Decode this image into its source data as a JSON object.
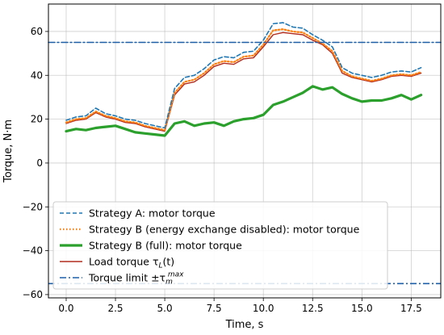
{
  "chart_data": {
    "type": "line",
    "title": "",
    "xlabel": "Time, s",
    "ylabel": "Torque, N·m",
    "xlim": [
      -0.9,
      19.0
    ],
    "ylim": [
      -61.5,
      72.5
    ],
    "xticks": [
      0,
      2.5,
      5,
      7.5,
      10,
      12.5,
      15,
      17.5
    ],
    "xtick_labels": [
      "0.0",
      "2.5",
      "5.0",
      "7.5",
      "10.0",
      "12.5",
      "15.0",
      "17.5"
    ],
    "yticks": [
      -60,
      -40,
      -20,
      0,
      20,
      40,
      60
    ],
    "ytick_labels": [
      "−60",
      "−40",
      "−20",
      "0",
      "20",
      "40",
      "60"
    ],
    "grid": true,
    "legend_position": "lower-left",
    "series": [
      {
        "name": "Strategy A: motor torque",
        "color": "#1f77b4",
        "style": "dashed",
        "x": [
          0,
          0.5,
          1,
          1.5,
          2,
          2.5,
          3,
          3.5,
          4,
          4.5,
          5,
          5.5,
          6,
          6.5,
          7,
          7.5,
          8,
          8.5,
          9,
          9.5,
          10,
          10.5,
          11,
          11.5,
          12,
          12.5,
          13,
          13.5,
          14,
          14.5,
          15,
          15.5,
          16,
          16.5,
          17,
          17.5,
          18
        ],
        "y": [
          19.5,
          21,
          21.5,
          25,
          22.5,
          21.5,
          20,
          19.5,
          18,
          17,
          16,
          34,
          39,
          40,
          43,
          47,
          48.5,
          48,
          50.5,
          51,
          56,
          63.5,
          64,
          62,
          61.5,
          58.5,
          56,
          53,
          43.5,
          41,
          40,
          39,
          40,
          41.5,
          42,
          41.5,
          43.5
        ]
      },
      {
        "name": "Strategy B (energy exchange disabled): motor torque",
        "color": "#ff7f0e",
        "style": "dotted",
        "x": [
          0,
          0.5,
          1,
          1.5,
          2,
          2.5,
          3,
          3.5,
          4,
          4.5,
          5,
          5.5,
          6,
          6.5,
          7,
          7.5,
          8,
          8.5,
          9,
          9.5,
          10,
          10.5,
          11,
          11.5,
          12,
          12.5,
          13,
          13.5,
          14,
          14.5,
          15,
          15.5,
          16,
          16.5,
          17,
          17.5,
          18
        ],
        "y": [
          18.5,
          20,
          20.5,
          23.5,
          21.5,
          20.5,
          19,
          18.5,
          17,
          16,
          15,
          32,
          37,
          38,
          41,
          45,
          46.5,
          46,
          48.5,
          49,
          54,
          60.5,
          61,
          60,
          59.5,
          57,
          54.5,
          51,
          42,
          39.5,
          38.5,
          37.5,
          38.5,
          40,
          40.5,
          40,
          41.5
        ]
      },
      {
        "name": "Strategy B (full): motor torque",
        "color": "#2ca02c",
        "style": "solid-thick",
        "x": [
          0,
          0.5,
          1,
          1.5,
          2,
          2.5,
          3,
          3.5,
          4,
          4.5,
          5,
          5.5,
          6,
          6.5,
          7,
          7.5,
          8,
          8.5,
          9,
          9.5,
          10,
          10.5,
          11,
          11.5,
          12,
          12.5,
          13,
          13.5,
          14,
          14.5,
          15,
          15.5,
          16,
          16.5,
          17,
          17.5,
          18
        ],
        "y": [
          14.5,
          15.5,
          15,
          16,
          16.5,
          17,
          15.5,
          14,
          13.5,
          13,
          12.5,
          18,
          19,
          17,
          18,
          18.5,
          17,
          19,
          20,
          20.5,
          22,
          26.5,
          28,
          30,
          32,
          35,
          33.5,
          34.5,
          31.5,
          29.5,
          28,
          28.5,
          28.5,
          29.5,
          31,
          29,
          31
        ]
      },
      {
        "name": "Load torque τ_L(t)",
        "color": "#b22b1e",
        "style": "solid",
        "x": [
          0,
          0.5,
          1,
          1.5,
          2,
          2.5,
          3,
          3.5,
          4,
          4.5,
          5,
          5.5,
          6,
          6.5,
          7,
          7.5,
          8,
          8.5,
          9,
          9.5,
          10,
          10.5,
          11,
          11.5,
          12,
          12.5,
          13,
          13.5,
          14,
          14.5,
          15,
          15.5,
          16,
          16.5,
          17,
          17.5,
          18
        ],
        "y": [
          18,
          19.5,
          20,
          23,
          21,
          20,
          18.5,
          18,
          16.5,
          15.5,
          14.5,
          31,
          36,
          37,
          40,
          44,
          45.5,
          45,
          47.5,
          48,
          53,
          58.5,
          59.5,
          59,
          58.5,
          56,
          54,
          50,
          41,
          39,
          38,
          37,
          38,
          39.5,
          40,
          39.5,
          41
        ]
      },
      {
        "name": "Torque limit ±τ_m^max",
        "color": "#1f5fa8",
        "style": "dashdot",
        "x": [
          -0.9,
          19.0
        ],
        "y": [
          55,
          55
        ],
        "mirror_y": [
          -55,
          -55
        ]
      }
    ],
    "legend_entries": [
      {
        "prefix": "Strategy A: motor torque",
        "sub": "",
        "sup": "",
        "suffix": ""
      },
      {
        "prefix": "Strategy B (energy exchange disabled): motor torque",
        "sub": "",
        "sup": "",
        "suffix": ""
      },
      {
        "prefix": "Strategy B (full): motor torque",
        "sub": "",
        "sup": "",
        "suffix": ""
      },
      {
        "prefix": "Load torque τ",
        "sub": "L",
        "sup": "",
        "suffix": "(t)"
      },
      {
        "prefix": "Torque limit ±τ",
        "sub": "m",
        "sup": "max",
        "suffix": ""
      }
    ]
  }
}
